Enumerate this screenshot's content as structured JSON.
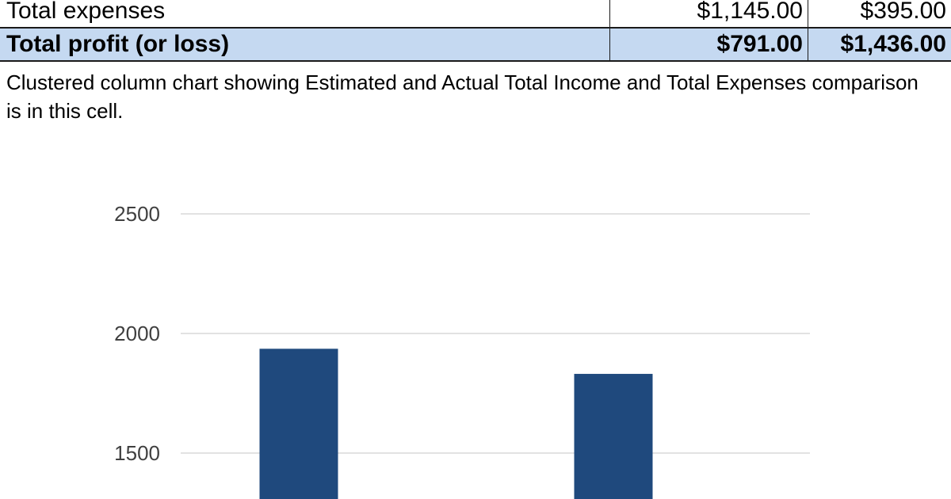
{
  "table": {
    "rows": [
      {
        "label": "Total expenses",
        "estimated": "$1,145.00",
        "actual": "$395.00"
      },
      {
        "label": "Total profit (or loss)",
        "estimated": "$791.00",
        "actual": "$1,436.00"
      }
    ]
  },
  "description": "Clustered column chart showing Estimated and Actual Total Income and Total Expenses comparison is in this cell.",
  "chart_data": {
    "type": "bar",
    "categories": [
      "",
      ""
    ],
    "values": [
      1936,
      1831
    ],
    "title": "",
    "xlabel": "",
    "ylabel": "",
    "yticks": [
      "1500",
      "2000",
      "2500"
    ],
    "ylim": [
      1000,
      2500
    ],
    "grid": true,
    "bar_color": "#1f497d",
    "grid_color": "#d9d9d9"
  }
}
